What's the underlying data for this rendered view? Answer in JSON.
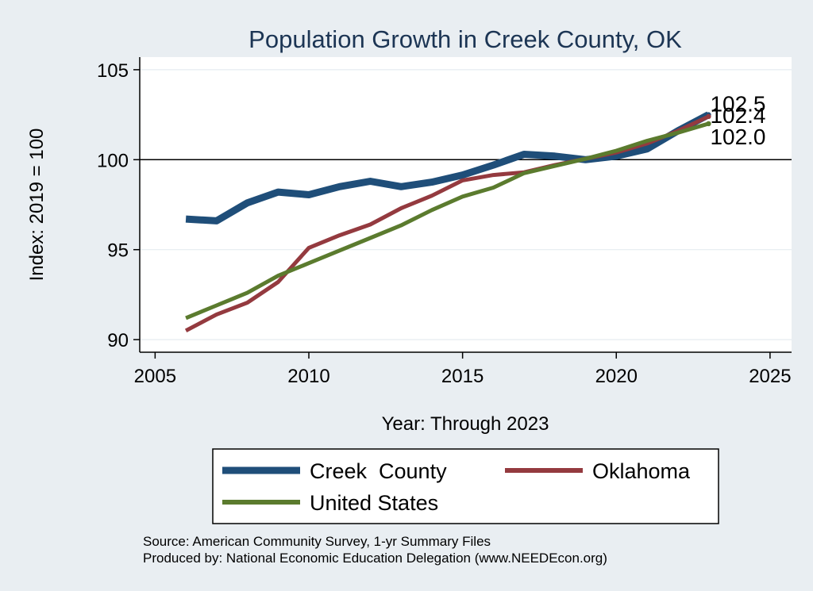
{
  "chart_data": {
    "type": "line",
    "title": "Population Growth in Creek County, OK",
    "xlabel": "Year: Through 2023",
    "ylabel": "Index: 2019 = 100",
    "xlim": [
      2004.5,
      2025.7
    ],
    "ylim": [
      89.3,
      105.7
    ],
    "xticks": [
      2005,
      2010,
      2015,
      2020,
      2025
    ],
    "yticks": [
      90,
      95,
      100,
      105
    ],
    "reference_line": 100,
    "x": [
      2006,
      2007,
      2008,
      2009,
      2010,
      2011,
      2012,
      2013,
      2014,
      2015,
      2016,
      2017,
      2018,
      2019,
      2020,
      2021,
      2022,
      2023
    ],
    "series": [
      {
        "name": "Creek  County",
        "color": "#1f4e79",
        "values": [
          96.7,
          96.6,
          97.6,
          98.2,
          98.05,
          98.5,
          98.8,
          98.5,
          98.75,
          99.15,
          99.7,
          100.3,
          100.2,
          100.0,
          100.2,
          100.6,
          101.6,
          102.5
        ],
        "end_label": "102.5"
      },
      {
        "name": "Oklahoma",
        "color": "#943a3f",
        "values": [
          90.5,
          91.4,
          92.05,
          93.2,
          95.1,
          95.8,
          96.4,
          97.3,
          98.0,
          98.85,
          99.15,
          99.3,
          99.7,
          100.05,
          100.4,
          100.9,
          101.6,
          102.4
        ],
        "end_label": "102.4"
      },
      {
        "name": "United States",
        "color": "#5b7b2e",
        "values": [
          91.2,
          91.9,
          92.6,
          93.55,
          94.25,
          94.95,
          95.65,
          96.35,
          97.2,
          97.95,
          98.45,
          99.25,
          99.65,
          100.05,
          100.5,
          101.05,
          101.5,
          102.0
        ],
        "end_label": "102.0"
      }
    ],
    "legend": [
      "Creek  County",
      "Oklahoma",
      "United States"
    ],
    "legend_position": "bottom",
    "notes": [
      "Source: American Community Survey, 1-yr Summary Files",
      "Produced by: National Economic Education Delegation (www.NEEDEcon.org)"
    ]
  }
}
